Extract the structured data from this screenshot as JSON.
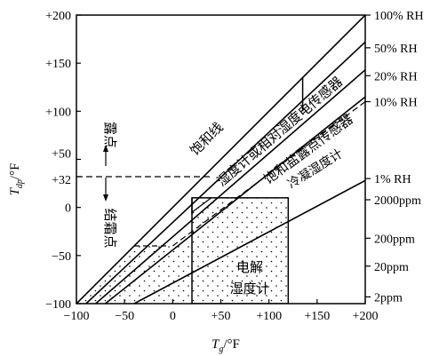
{
  "chart_data": {
    "type": "line",
    "x_axis": {
      "label_main": "T",
      "label_sub": "g",
      "label_unit": "/°F",
      "range": [
        -100,
        200
      ],
      "ticks": [
        -100,
        -50,
        0,
        50,
        100,
        150,
        200
      ],
      "tick_labels": [
        "−100",
        "−50",
        "0",
        "+50",
        "+100",
        "+150",
        "+200"
      ]
    },
    "y_axis": {
      "label_main": "T",
      "label_sub": "dp",
      "label_unit": "/°F",
      "range": [
        -100,
        200
      ],
      "ticks": [
        -100,
        -50,
        0,
        32,
        50,
        100,
        150,
        200
      ],
      "tick_labels": [
        "−100",
        "−50",
        "0",
        "+32",
        "+50",
        "+100",
        "+150",
        "+200"
      ]
    },
    "right_labels": [
      {
        "id": "rh100",
        "text": "100% RH",
        "y": 200
      },
      {
        "id": "rh50",
        "text": "50% RH",
        "y": 166
      },
      {
        "id": "rh20",
        "text": "20% RH",
        "y": 137
      },
      {
        "id": "rh10",
        "text": "10% RH",
        "y": 110
      },
      {
        "id": "rh1",
        "text": "1% RH",
        "y": 30
      },
      {
        "id": "ppm2000",
        "text": "2000ppm",
        "y": 8
      },
      {
        "id": "ppm200",
        "text": "200ppm",
        "y": -32
      },
      {
        "id": "ppm20",
        "text": "20ppm",
        "y": -61
      },
      {
        "id": "ppm2",
        "text": "2ppm",
        "y": -93
      }
    ],
    "series": [
      {
        "id": "rh100",
        "points": [
          [
            -100,
            -100
          ],
          [
            200,
            200
          ]
        ]
      },
      {
        "id": "rh50",
        "points": [
          [
            -90,
            -100
          ],
          [
            200,
            172
          ]
        ]
      },
      {
        "id": "rh20",
        "points": [
          [
            -80,
            -100
          ],
          [
            200,
            143
          ]
        ]
      },
      {
        "id": "rh10",
        "points": [
          [
            -70,
            -100
          ],
          [
            200,
            115
          ]
        ]
      },
      {
        "id": "rh1",
        "points": [
          [
            -40,
            -100
          ],
          [
            200,
            28
          ]
        ]
      }
    ],
    "dashed_lines": [
      {
        "id": "line-32",
        "points": [
          [
            -100,
            32
          ],
          [
            40,
            32
          ]
        ]
      },
      {
        "id": "diag-dashed",
        "points": [
          [
            0,
            -40
          ],
          [
            200,
            110
          ]
        ]
      }
    ],
    "regions": {
      "dew_sensor_box": {
        "x": [
          20,
          120
        ],
        "y": [
          -100,
          10
        ]
      },
      "hygrometer_step": {
        "x": [
          20,
          135
        ],
        "y": [
          10,
          135
        ]
      }
    },
    "annotations": {
      "saturation_line": "饱和线",
      "hygrometer": "湿度计或相对湿度电传感器",
      "salt_sensor": "饱和盐露点传感器",
      "chilled_mirror": "冷凝湿度计",
      "dew_point": "露点",
      "frost_point": "结霜点",
      "electrolytic": "电解",
      "electrolytic_2": "湿度计"
    }
  }
}
